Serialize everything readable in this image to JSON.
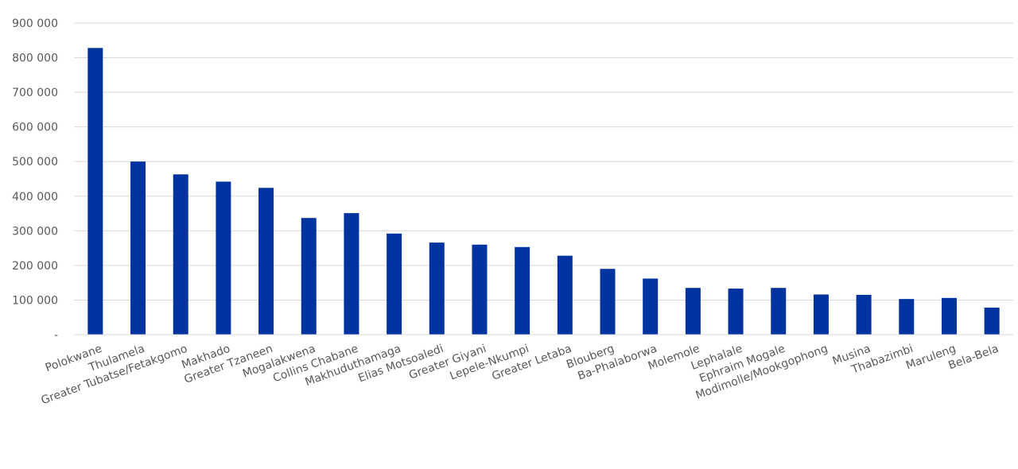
{
  "chart_data": {
    "type": "bar",
    "title": "",
    "xlabel": "",
    "ylabel": "",
    "ylim": [
      0,
      900000
    ],
    "yticks": [
      0,
      100000,
      200000,
      300000,
      400000,
      500000,
      600000,
      700000,
      800000,
      900000
    ],
    "ytick_labels": [
      "-",
      "100 000",
      "200 000",
      "300 000",
      "400 000",
      "500 000",
      "600 000",
      "700 000",
      "800 000",
      "900 000"
    ],
    "grid": true,
    "bar_color": "#0033a0",
    "categories": [
      "Polokwane",
      "Thulamela",
      "Greater Tubatse/Fetakgomo",
      "Makhado",
      "Greater Tzaneen",
      "Mogalakwena",
      "Collins Chabane",
      "Makhuduthamaga",
      "Elias Motsoaledi",
      "Greater Giyani",
      "Lepele-Nkumpi",
      "Greater Letaba",
      "Blouberg",
      "Ba-Phalaborwa",
      "Molemole",
      "Lephalale",
      "Ephraim Mogale",
      "Modimolle/Mookgophong",
      "Musina",
      "Thabazimbi",
      "Maruleng",
      "Bela-Bela"
    ],
    "values": [
      828000,
      500000,
      463000,
      442000,
      424000,
      337000,
      351000,
      292000,
      266000,
      260000,
      253000,
      228000,
      190000,
      162000,
      135000,
      133000,
      135000,
      116000,
      115000,
      103000,
      106000,
      78000
    ]
  }
}
